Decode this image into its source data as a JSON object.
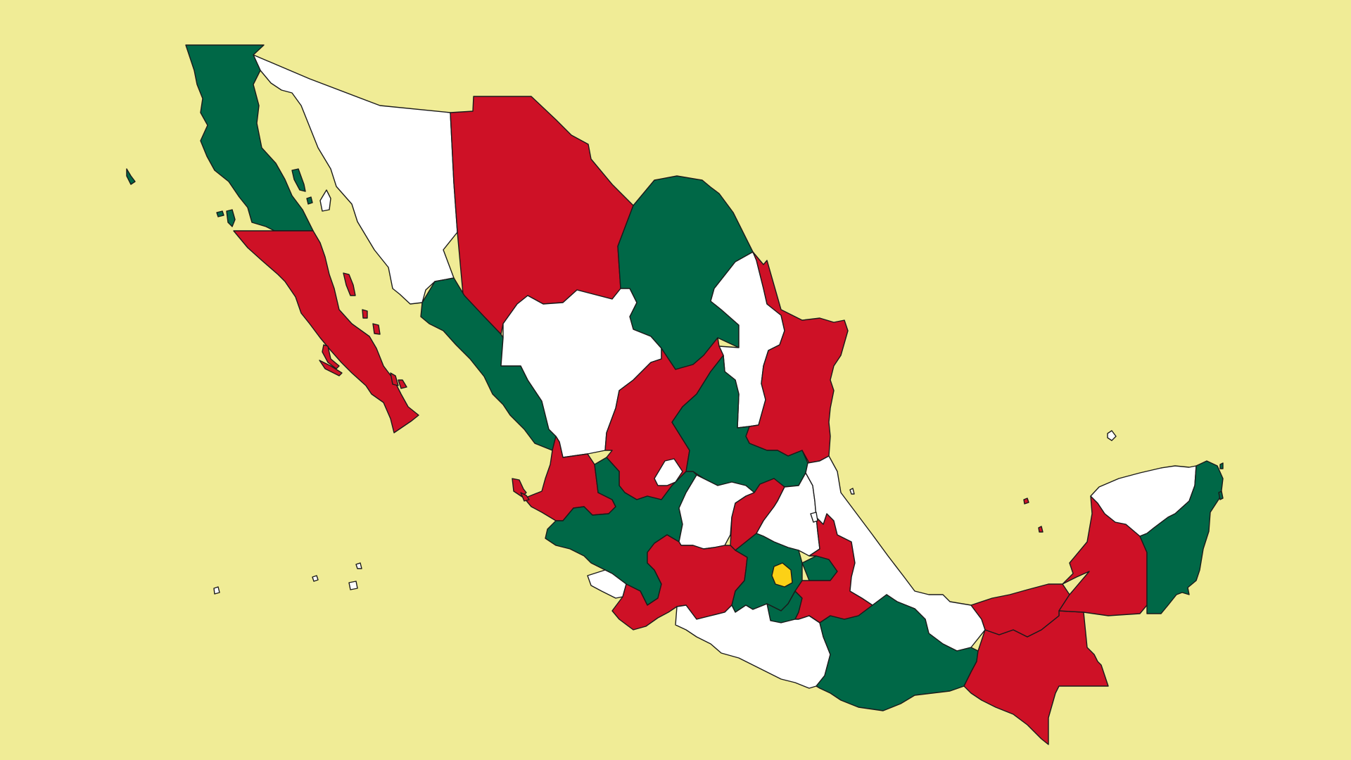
{
  "map": {
    "background_color": "#f0ec96",
    "palette": {
      "green": "#006847",
      "white": "#ffffff",
      "red": "#ce1126",
      "highlight": "#fcd116",
      "border": "#1a1a1a"
    },
    "regions": [
      {
        "id": "baja-california",
        "fill": "green"
      },
      {
        "id": "baja-california-sur",
        "fill": "red"
      },
      {
        "id": "sonora",
        "fill": "white"
      },
      {
        "id": "chihuahua",
        "fill": "red"
      },
      {
        "id": "coahuila",
        "fill": "green"
      },
      {
        "id": "nuevo-leon",
        "fill": "white"
      },
      {
        "id": "tamaulipas",
        "fill": "red"
      },
      {
        "id": "sinaloa",
        "fill": "green"
      },
      {
        "id": "durango",
        "fill": "white"
      },
      {
        "id": "zacatecas",
        "fill": "red"
      },
      {
        "id": "san-luis-potosi",
        "fill": "green"
      },
      {
        "id": "nayarit",
        "fill": "red"
      },
      {
        "id": "aguascalientes",
        "fill": "white"
      },
      {
        "id": "jalisco",
        "fill": "green"
      },
      {
        "id": "guanajuato",
        "fill": "white"
      },
      {
        "id": "queretaro",
        "fill": "red"
      },
      {
        "id": "hidalgo",
        "fill": "white"
      },
      {
        "id": "veracruz",
        "fill": "white"
      },
      {
        "id": "colima",
        "fill": "white"
      },
      {
        "id": "michoacan",
        "fill": "red"
      },
      {
        "id": "mexico-state",
        "fill": "green"
      },
      {
        "id": "mexico-city",
        "fill": "highlight"
      },
      {
        "id": "tlaxcala",
        "fill": "green"
      },
      {
        "id": "puebla",
        "fill": "red"
      },
      {
        "id": "morelos",
        "fill": "green"
      },
      {
        "id": "guerrero",
        "fill": "white"
      },
      {
        "id": "oaxaca",
        "fill": "green"
      },
      {
        "id": "chiapas",
        "fill": "red"
      },
      {
        "id": "tabasco",
        "fill": "red"
      },
      {
        "id": "campeche",
        "fill": "red"
      },
      {
        "id": "yucatan",
        "fill": "white"
      },
      {
        "id": "quintana-roo",
        "fill": "green"
      }
    ]
  }
}
